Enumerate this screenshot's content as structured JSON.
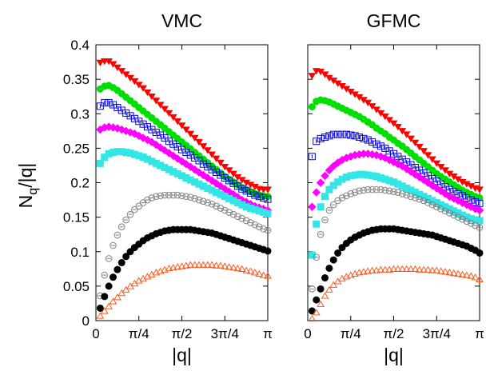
{
  "figure": {
    "ylabel_main": "N",
    "ylabel_sub": "q",
    "ylabel_tail": "/|q|"
  },
  "chart_data": [
    {
      "type": "scatter",
      "title": "VMC",
      "xlabel": "|q|",
      "ylabel": "Nq/|q|",
      "xlim": [
        0,
        3.14159
      ],
      "ylim": [
        0,
        0.4
      ],
      "xticks": [
        0,
        0.7854,
        1.5708,
        2.3562,
        3.14159
      ],
      "xtick_labels": [
        "0",
        "π/4",
        "π/2",
        "3π/4",
        "π"
      ],
      "yticks": [
        0,
        0.05,
        0.1,
        0.15,
        0.2,
        0.25,
        0.3,
        0.35,
        0.4
      ],
      "ytick_labels": [
        "0",
        "0.05",
        "0.1",
        "0.15",
        "0.2",
        "0.25",
        "0.3",
        "0.35",
        "0.4"
      ],
      "grid": false,
      "x": [
        0.0785,
        0.1571,
        0.2356,
        0.3142,
        0.3927,
        0.4712,
        0.5498,
        0.6283,
        0.7069,
        0.7854,
        0.8639,
        0.9425,
        1.021,
        1.0996,
        1.1781,
        1.2566,
        1.3352,
        1.4137,
        1.4923,
        1.5708,
        1.6493,
        1.7279,
        1.8064,
        1.885,
        1.9635,
        2.042,
        2.1206,
        2.1991,
        2.2777,
        2.3562,
        2.4347,
        2.5133,
        2.5918,
        2.6704,
        2.7489,
        2.8274,
        2.906,
        2.9845,
        3.0631,
        3.1416
      ],
      "series": [
        {
          "marker": "triangle-down",
          "color": "#ff0000",
          "fill": true,
          "values": [
            0.374,
            0.376,
            0.376,
            0.372,
            0.367,
            0.362,
            0.357,
            0.352,
            0.347,
            0.342,
            0.337,
            0.331,
            0.325,
            0.319,
            0.313,
            0.307,
            0.301,
            0.295,
            0.289,
            0.283,
            0.277,
            0.271,
            0.265,
            0.259,
            0.253,
            0.247,
            0.241,
            0.235,
            0.229,
            0.223,
            0.218,
            0.213,
            0.208,
            0.204,
            0.2,
            0.197,
            0.194,
            0.191,
            0.19,
            0.19
          ]
        },
        {
          "marker": "circle",
          "color": "#00e000",
          "fill": true,
          "values": [
            0.336,
            0.34,
            0.341,
            0.338,
            0.334,
            0.329,
            0.324,
            0.319,
            0.314,
            0.309,
            0.304,
            0.299,
            0.294,
            0.289,
            0.284,
            0.279,
            0.274,
            0.269,
            0.264,
            0.259,
            0.254,
            0.249,
            0.244,
            0.239,
            0.234,
            0.229,
            0.224,
            0.219,
            0.214,
            0.209,
            0.205,
            0.201,
            0.197,
            0.193,
            0.19,
            0.187,
            0.184,
            0.182,
            0.181,
            0.18
          ]
        },
        {
          "marker": "square-errorbar",
          "color": "#0000e6",
          "fill": false,
          "values": [
            0.311,
            0.316,
            0.316,
            0.313,
            0.309,
            0.305,
            0.301,
            0.297,
            0.293,
            0.289,
            0.285,
            0.281,
            0.277,
            0.273,
            0.269,
            0.265,
            0.26,
            0.256,
            0.252,
            0.248,
            0.244,
            0.24,
            0.236,
            0.232,
            0.227,
            0.223,
            0.219,
            0.215,
            0.211,
            0.207,
            0.203,
            0.199,
            0.195,
            0.191,
            0.188,
            0.185,
            0.182,
            0.18,
            0.178,
            0.176
          ]
        },
        {
          "marker": "diamond",
          "color": "#ff00ff",
          "fill": true,
          "values": [
            0.277,
            0.28,
            0.281,
            0.28,
            0.279,
            0.277,
            0.275,
            0.273,
            0.271,
            0.268,
            0.265,
            0.262,
            0.259,
            0.255,
            0.251,
            0.247,
            0.243,
            0.239,
            0.235,
            0.231,
            0.227,
            0.223,
            0.219,
            0.215,
            0.211,
            0.207,
            0.203,
            0.199,
            0.195,
            0.191,
            0.187,
            0.183,
            0.179,
            0.175,
            0.172,
            0.169,
            0.166,
            0.164,
            0.162,
            0.16
          ]
        },
        {
          "marker": "square",
          "color": "#33e6e6",
          "fill": true,
          "values": [
            0.228,
            0.237,
            0.242,
            0.244,
            0.245,
            0.245,
            0.244,
            0.243,
            0.241,
            0.239,
            0.237,
            0.234,
            0.231,
            0.228,
            0.225,
            0.222,
            0.219,
            0.216,
            0.213,
            0.21,
            0.207,
            0.204,
            0.201,
            0.198,
            0.195,
            0.192,
            0.189,
            0.186,
            0.183,
            0.18,
            0.177,
            0.174,
            0.171,
            0.168,
            0.165,
            0.163,
            0.161,
            0.159,
            0.157,
            0.155
          ]
        },
        {
          "marker": "circle-errorbar",
          "color": "#808080",
          "fill": false,
          "values": [
            0.036,
            0.066,
            0.09,
            0.109,
            0.124,
            0.136,
            0.146,
            0.154,
            0.161,
            0.166,
            0.171,
            0.175,
            0.178,
            0.18,
            0.181,
            0.182,
            0.182,
            0.182,
            0.182,
            0.181,
            0.18,
            0.179,
            0.177,
            0.175,
            0.173,
            0.171,
            0.169,
            0.166,
            0.163,
            0.16,
            0.157,
            0.154,
            0.151,
            0.148,
            0.145,
            0.142,
            0.139,
            0.136,
            0.133,
            0.131
          ]
        },
        {
          "marker": "circle",
          "color": "#000000",
          "fill": true,
          "values": [
            0.018,
            0.035,
            0.05,
            0.063,
            0.074,
            0.084,
            0.093,
            0.1,
            0.106,
            0.111,
            0.116,
            0.12,
            0.123,
            0.126,
            0.128,
            0.13,
            0.131,
            0.132,
            0.132,
            0.132,
            0.132,
            0.132,
            0.131,
            0.13,
            0.129,
            0.128,
            0.127,
            0.125,
            0.123,
            0.121,
            0.119,
            0.117,
            0.115,
            0.113,
            0.111,
            0.109,
            0.107,
            0.105,
            0.103,
            0.101
          ]
        },
        {
          "marker": "triangle-up",
          "color": "#ff5a1e",
          "fill": false,
          "values": [
            0.007,
            0.014,
            0.021,
            0.028,
            0.034,
            0.04,
            0.045,
            0.05,
            0.054,
            0.058,
            0.061,
            0.064,
            0.067,
            0.07,
            0.072,
            0.074,
            0.076,
            0.077,
            0.078,
            0.079,
            0.08,
            0.081,
            0.081,
            0.081,
            0.081,
            0.081,
            0.081,
            0.08,
            0.08,
            0.079,
            0.078,
            0.077,
            0.076,
            0.075,
            0.073,
            0.072,
            0.07,
            0.068,
            0.066,
            0.065
          ]
        }
      ]
    },
    {
      "type": "scatter",
      "title": "GFMC",
      "xlabel": "|q|",
      "ylabel": "",
      "xlim": [
        0,
        3.14159
      ],
      "ylim": [
        0,
        0.4
      ],
      "xticks": [
        0,
        0.7854,
        1.5708,
        2.3562,
        3.14159
      ],
      "xtick_labels": [
        "0",
        "π/4",
        "π/2",
        "3π/4",
        "π"
      ],
      "yticks": [
        0,
        0.05,
        0.1,
        0.15,
        0.2,
        0.25,
        0.3,
        0.35,
        0.4
      ],
      "ytick_labels": [],
      "grid": false,
      "x": [
        0.0785,
        0.1571,
        0.2356,
        0.3142,
        0.3927,
        0.4712,
        0.5498,
        0.6283,
        0.7069,
        0.7854,
        0.8639,
        0.9425,
        1.021,
        1.0996,
        1.1781,
        1.2566,
        1.3352,
        1.4137,
        1.4923,
        1.5708,
        1.6493,
        1.7279,
        1.8064,
        1.885,
        1.9635,
        2.042,
        2.1206,
        2.1991,
        2.2777,
        2.3562,
        2.4347,
        2.5133,
        2.5918,
        2.6704,
        2.7489,
        2.8274,
        2.906,
        2.9845,
        3.0631,
        3.1416
      ],
      "series": [
        {
          "marker": "triangle-down",
          "color": "#ff0000",
          "fill": true,
          "values": [
            0.355,
            0.362,
            0.361,
            0.357,
            0.352,
            0.348,
            0.344,
            0.34,
            0.336,
            0.332,
            0.328,
            0.324,
            0.32,
            0.316,
            0.311,
            0.306,
            0.301,
            0.296,
            0.291,
            0.286,
            0.281,
            0.275,
            0.27,
            0.264,
            0.258,
            0.252,
            0.246,
            0.24,
            0.234,
            0.228,
            0.223,
            0.218,
            0.213,
            0.209,
            0.205,
            0.201,
            0.198,
            0.195,
            0.192,
            0.19
          ]
        },
        {
          "marker": "circle",
          "color": "#00e000",
          "fill": true,
          "values": [
            0.31,
            0.318,
            0.32,
            0.319,
            0.317,
            0.314,
            0.311,
            0.308,
            0.305,
            0.302,
            0.299,
            0.296,
            0.292,
            0.288,
            0.284,
            0.279,
            0.275,
            0.271,
            0.266,
            0.262,
            0.257,
            0.253,
            0.248,
            0.243,
            0.238,
            0.233,
            0.228,
            0.223,
            0.218,
            0.213,
            0.209,
            0.205,
            0.201,
            0.197,
            0.193,
            0.189,
            0.186,
            0.183,
            0.18,
            0.178
          ]
        },
        {
          "marker": "square-errorbar",
          "color": "#0000e6",
          "fill": false,
          "values": [
            0.238,
            0.26,
            0.264,
            0.266,
            0.268,
            0.27,
            0.27,
            0.27,
            0.27,
            0.269,
            0.268,
            0.266,
            0.264,
            0.262,
            0.259,
            0.256,
            0.253,
            0.25,
            0.246,
            0.242,
            0.238,
            0.234,
            0.23,
            0.226,
            0.222,
            0.218,
            0.214,
            0.21,
            0.206,
            0.202,
            0.198,
            0.194,
            0.19,
            0.187,
            0.184,
            0.181,
            0.178,
            0.175,
            0.172,
            0.17
          ]
        },
        {
          "marker": "diamond",
          "color": "#ff00ff",
          "fill": true,
          "values": [
            0.165,
            0.186,
            0.2,
            0.21,
            0.218,
            0.224,
            0.229,
            0.233,
            0.236,
            0.238,
            0.24,
            0.241,
            0.242,
            0.242,
            0.241,
            0.24,
            0.238,
            0.236,
            0.233,
            0.23,
            0.227,
            0.224,
            0.22,
            0.216,
            0.212,
            0.208,
            0.204,
            0.2,
            0.196,
            0.192,
            0.188,
            0.184,
            0.18,
            0.177,
            0.174,
            0.171,
            0.168,
            0.165,
            0.162,
            0.16
          ]
        },
        {
          "marker": "square",
          "color": "#33e6e6",
          "fill": true,
          "values": [
            0.095,
            0.14,
            0.165,
            0.18,
            0.19,
            0.196,
            0.201,
            0.205,
            0.208,
            0.21,
            0.211,
            0.212,
            0.212,
            0.211,
            0.21,
            0.209,
            0.207,
            0.205,
            0.203,
            0.201,
            0.198,
            0.195,
            0.192,
            0.189,
            0.186,
            0.183,
            0.18,
            0.177,
            0.174,
            0.171,
            0.168,
            0.165,
            0.162,
            0.159,
            0.156,
            0.153,
            0.15,
            0.148,
            0.146,
            0.145
          ]
        },
        {
          "marker": "circle-errorbar",
          "color": "#808080",
          "fill": false,
          "values": [
            0.046,
            0.092,
            0.125,
            0.146,
            0.16,
            0.168,
            0.174,
            0.178,
            0.181,
            0.184,
            0.186,
            0.188,
            0.189,
            0.19,
            0.19,
            0.19,
            0.19,
            0.189,
            0.188,
            0.187,
            0.186,
            0.184,
            0.182,
            0.18,
            0.178,
            0.176,
            0.174,
            0.171,
            0.168,
            0.165,
            0.162,
            0.159,
            0.156,
            0.153,
            0.15,
            0.147,
            0.144,
            0.141,
            0.138,
            0.135
          ]
        },
        {
          "marker": "circle",
          "color": "#000000",
          "fill": true,
          "values": [
            0.014,
            0.03,
            0.046,
            0.062,
            0.076,
            0.088,
            0.098,
            0.106,
            0.112,
            0.117,
            0.121,
            0.124,
            0.127,
            0.129,
            0.131,
            0.132,
            0.133,
            0.133,
            0.133,
            0.133,
            0.132,
            0.131,
            0.13,
            0.129,
            0.128,
            0.127,
            0.126,
            0.125,
            0.124,
            0.122,
            0.12,
            0.118,
            0.116,
            0.114,
            0.112,
            0.11,
            0.108,
            0.105,
            0.102,
            0.098
          ]
        },
        {
          "marker": "triangle-up",
          "color": "#ff5a1e",
          "fill": false,
          "values": [
            0.003,
            0.012,
            0.024,
            0.036,
            0.045,
            0.052,
            0.057,
            0.061,
            0.064,
            0.066,
            0.068,
            0.07,
            0.071,
            0.072,
            0.073,
            0.073,
            0.074,
            0.074,
            0.074,
            0.075,
            0.075,
            0.075,
            0.075,
            0.075,
            0.075,
            0.074,
            0.074,
            0.074,
            0.073,
            0.073,
            0.072,
            0.071,
            0.07,
            0.069,
            0.068,
            0.067,
            0.066,
            0.065,
            0.063,
            0.06
          ]
        }
      ]
    }
  ]
}
